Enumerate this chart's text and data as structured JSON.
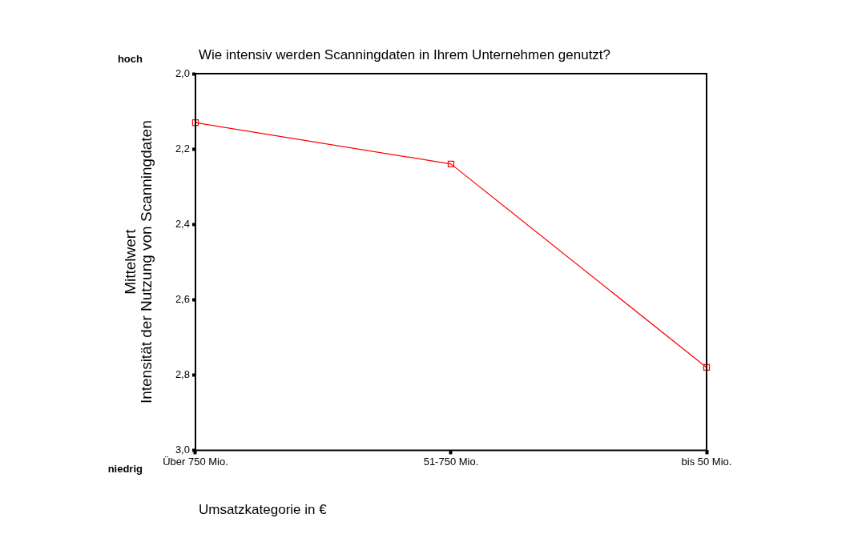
{
  "chart_data": {
    "type": "line",
    "title": "Wie intensiv werden Scanningdaten in Ihrem Unternehmen genutzt?",
    "xlabel": "Umsatzkategorie in €",
    "ylabel": "Mittelwert\nIntensität der Nutzung von Scanningdaten",
    "categories": [
      "Über 750 Mio.",
      "51-750 Mio.",
      "bis 50 Mio."
    ],
    "series": [
      {
        "color": "#ff0000",
        "values": [
          2.13,
          2.24,
          2.78
        ]
      }
    ],
    "ylim": [
      3.0,
      2.0
    ],
    "yticks": [
      {
        "value": 2.0,
        "label": "2,0"
      },
      {
        "value": 2.2,
        "label": "2,2"
      },
      {
        "value": 2.4,
        "label": "2,4"
      },
      {
        "value": 2.6,
        "label": "2,6"
      },
      {
        "value": 2.8,
        "label": "2,8"
      },
      {
        "value": 3.0,
        "label": "3,0"
      }
    ],
    "annotations": [
      "hoch",
      "niedrig"
    ],
    "grid": false,
    "legend": false,
    "marker": "square",
    "line_style": "solid"
  }
}
